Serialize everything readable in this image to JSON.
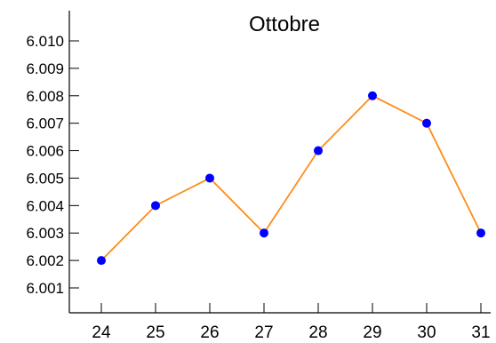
{
  "chart_data": {
    "type": "line",
    "title": "Ottobre",
    "xlabel": "",
    "ylabel": "",
    "x": [
      24,
      25,
      26,
      27,
      28,
      29,
      30,
      31
    ],
    "x_tick_labels": [
      "24",
      "25",
      "26",
      "27",
      "28",
      "29",
      "30",
      "31"
    ],
    "y": [
      6.002,
      6.004,
      6.005,
      6.003,
      6.006,
      6.008,
      6.007,
      6.003
    ],
    "y_tick_labels": [
      "6.010",
      "6.009",
      "6.008",
      "6.007",
      "6.006",
      "6.005",
      "6.004",
      "6.003",
      "6.002",
      "6.001"
    ],
    "ylim": [
      6.0,
      6.011
    ],
    "grid": false,
    "legend": "none",
    "colors": {
      "line": "#ff8c1a",
      "marker": "#0000ff",
      "axis": "#000000",
      "text": "#000000"
    }
  }
}
